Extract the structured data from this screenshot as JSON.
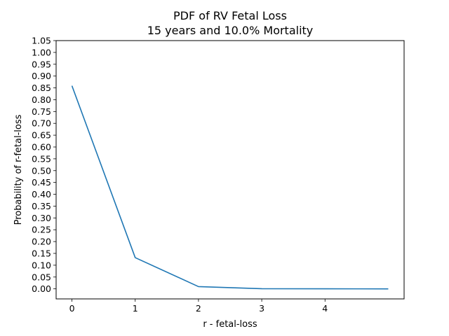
{
  "chart_data": {
    "type": "line",
    "title_line1": "PDF of RV Fetal Loss",
    "title_line2": "15 years and 10.0% Mortality",
    "xlabel": "r - fetal-loss",
    "ylabel": "Probability of r-fetal-loss",
    "xlim": [
      -0.25,
      5.25
    ],
    "ylim": [
      -0.0425,
      1.05
    ],
    "x_ticks": [
      "0",
      "1",
      "2",
      "3",
      "4"
    ],
    "y_ticks": [
      "0.00",
      "0.05",
      "0.10",
      "0.15",
      "0.20",
      "0.25",
      "0.30",
      "0.35",
      "0.40",
      "0.45",
      "0.50",
      "0.55",
      "0.60",
      "0.65",
      "0.70",
      "0.75",
      "0.80",
      "0.85",
      "0.90",
      "0.95",
      "1.00",
      "1.05"
    ],
    "series": [
      {
        "color": "#1f77b4",
        "x": [
          0,
          1,
          2,
          3,
          4,
          5
        ],
        "y": [
          0.859,
          0.132,
          0.0095,
          0.0005,
          0.0001,
          0.0
        ]
      }
    ],
    "grid": false,
    "legend": "none"
  }
}
